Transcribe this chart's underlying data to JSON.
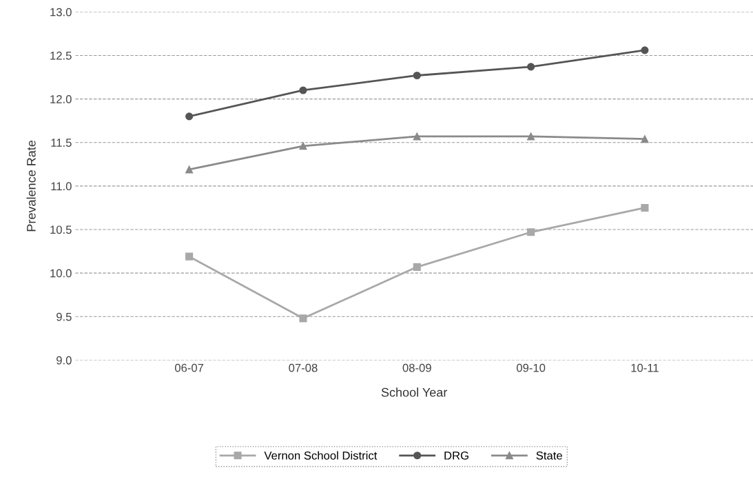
{
  "chart_data": {
    "type": "line",
    "xlabel": "School Year",
    "ylabel": "Prevalence Rate",
    "categories": [
      "06-07",
      "07-08",
      "08-09",
      "09-10",
      "10-11"
    ],
    "series": [
      {
        "name": "Vernon School District",
        "color": "#a8a8a8",
        "marker": "square",
        "values": [
          10.19,
          9.48,
          10.07,
          10.47,
          10.75
        ]
      },
      {
        "name": "DRG",
        "color": "#555555",
        "marker": "circle",
        "values": [
          11.8,
          12.1,
          12.27,
          12.37,
          12.56
        ]
      },
      {
        "name": "State",
        "color": "#8a8a8a",
        "marker": "triangle",
        "values": [
          11.19,
          11.46,
          11.57,
          11.57,
          11.54
        ]
      }
    ],
    "ylim": [
      9.0,
      13.0
    ],
    "yticks": [
      {
        "value": 9.0,
        "label": "9.0"
      },
      {
        "value": 9.5,
        "label": "9.5"
      },
      {
        "value": 10.0,
        "label": "10.0"
      },
      {
        "value": 10.5,
        "label": "10.5"
      },
      {
        "value": 11.0,
        "label": "11.0"
      },
      {
        "value": 11.5,
        "label": "11.5"
      },
      {
        "value": 12.0,
        "label": "12.0"
      },
      {
        "value": 12.5,
        "label": "12.5"
      },
      {
        "value": 13.0,
        "label": "13.0"
      }
    ],
    "grid": "y",
    "legend": "bottom",
    "line_style": "solid"
  }
}
